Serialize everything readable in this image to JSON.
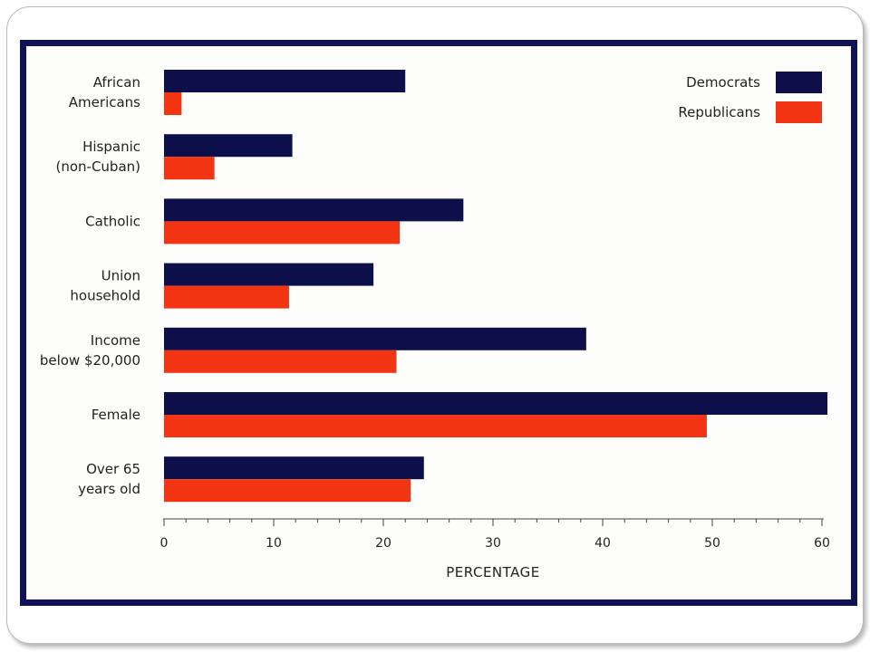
{
  "chart_data": {
    "type": "bar",
    "orientation": "horizontal",
    "categories": [
      [
        "African",
        "Americans"
      ],
      [
        "Hispanic",
        "(non-Cuban)"
      ],
      [
        "Catholic"
      ],
      [
        "Union",
        "household"
      ],
      [
        "Income",
        "below $20,000"
      ],
      [
        "Female"
      ],
      [
        "Over 65",
        "years old"
      ]
    ],
    "series": [
      {
        "name": "Democrats",
        "color": "#0d0f4b",
        "values": [
          22,
          11.7,
          27.3,
          19.1,
          38.5,
          60.5,
          23.7
        ]
      },
      {
        "name": "Republicans",
        "color": "#f43514",
        "values": [
          1.6,
          4.6,
          21.5,
          11.4,
          21.2,
          49.5,
          22.5
        ]
      }
    ],
    "xlim": [
      0,
      60
    ],
    "xticks": [
      0,
      10,
      20,
      30,
      40,
      50,
      60
    ],
    "xlabel": "PERCENTAGE",
    "ylabel": "",
    "title": "",
    "grid": false,
    "legend_position": "top-right"
  }
}
